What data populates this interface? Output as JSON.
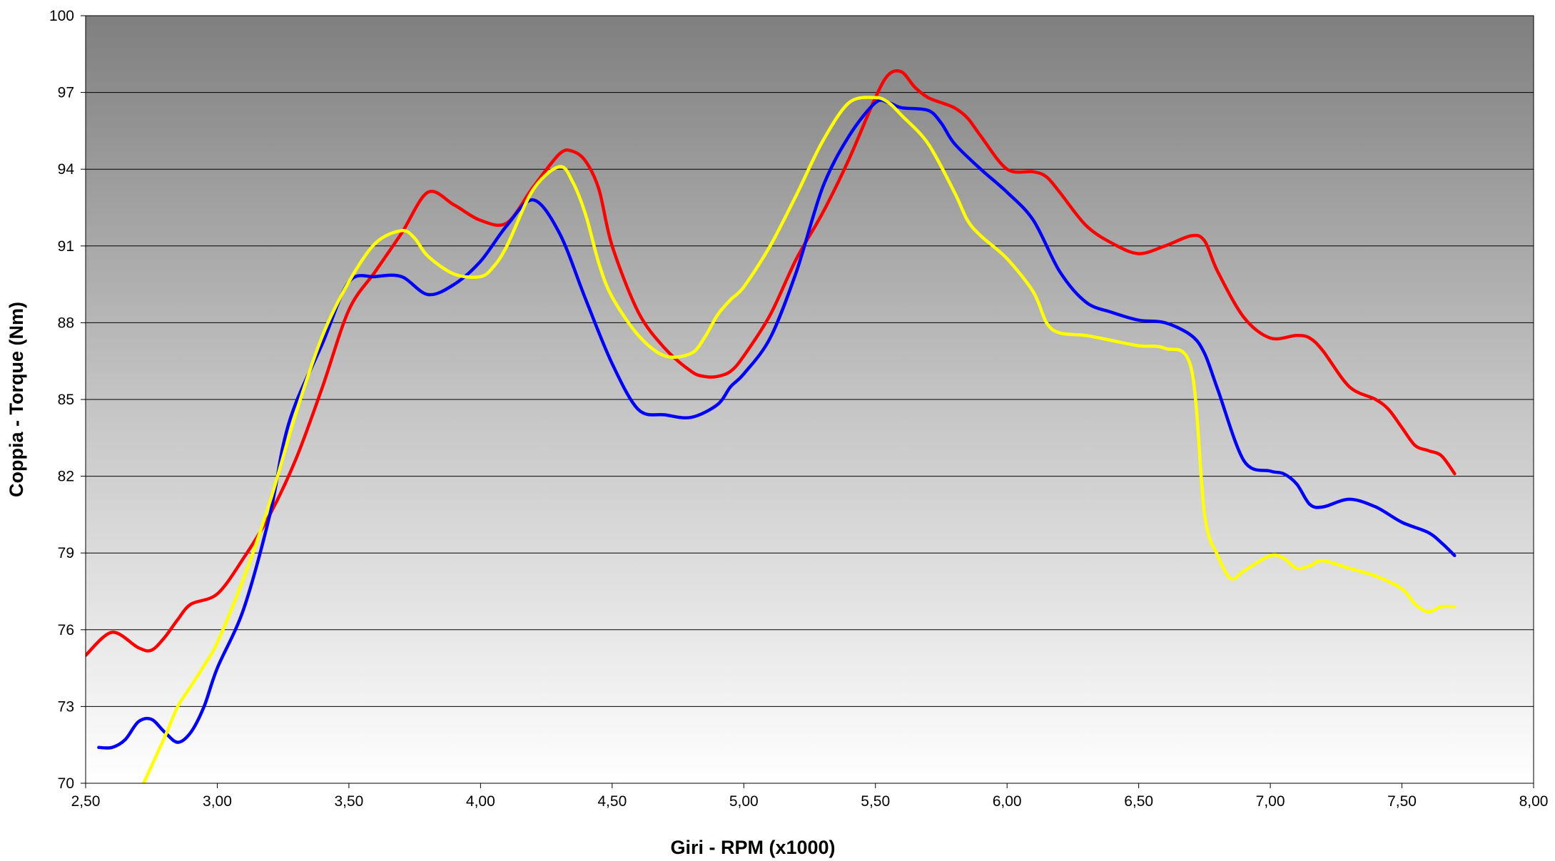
{
  "chart_data": {
    "type": "line",
    "xlabel": "Giri - RPM (x1000)",
    "ylabel": "Coppia - Torque (Nm)",
    "xlim": [
      2.5,
      8.0
    ],
    "ylim": [
      70,
      100
    ],
    "x_ticks": [
      "2,50",
      "3,00",
      "3,50",
      "4,00",
      "4,50",
      "5,00",
      "5,50",
      "6,00",
      "6,50",
      "7,00",
      "7,50",
      "8,00"
    ],
    "y_ticks": [
      "70",
      "73",
      "76",
      "79",
      "82",
      "85",
      "88",
      "91",
      "94",
      "97",
      "100"
    ],
    "grid": "horizontal",
    "background": "vertical gradient dark gray top to white bottom",
    "legend": "none",
    "series": [
      {
        "color": "#ff0000",
        "x": [
          2.5,
          2.6,
          2.7,
          2.75,
          2.8,
          2.85,
          2.9,
          3.0,
          3.1,
          3.2,
          3.3,
          3.4,
          3.5,
          3.6,
          3.7,
          3.8,
          3.9,
          4.0,
          4.1,
          4.2,
          4.3,
          4.35,
          4.4,
          4.45,
          4.5,
          4.6,
          4.7,
          4.8,
          4.85,
          4.9,
          4.95,
          5.0,
          5.1,
          5.2,
          5.3,
          5.4,
          5.5,
          5.55,
          5.6,
          5.65,
          5.7,
          5.75,
          5.8,
          5.85,
          5.9,
          6.0,
          6.1,
          6.15,
          6.2,
          6.3,
          6.4,
          6.5,
          6.6,
          6.7,
          6.75,
          6.8,
          6.9,
          7.0,
          7.1,
          7.15,
          7.2,
          7.3,
          7.4,
          7.45,
          7.5,
          7.55,
          7.6,
          7.65,
          7.7
        ],
        "y": [
          75.0,
          75.9,
          75.3,
          75.2,
          75.7,
          76.4,
          77.0,
          77.4,
          78.8,
          80.5,
          82.7,
          85.5,
          88.5,
          90.0,
          91.5,
          93.1,
          92.6,
          92.0,
          91.9,
          93.3,
          94.6,
          94.7,
          94.3,
          93.2,
          91.0,
          88.4,
          87.0,
          86.1,
          85.9,
          85.9,
          86.1,
          86.7,
          88.3,
          90.5,
          92.3,
          94.4,
          96.8,
          97.7,
          97.8,
          97.2,
          96.8,
          96.6,
          96.4,
          96.0,
          95.3,
          94.0,
          93.9,
          93.7,
          93.1,
          91.8,
          91.1,
          90.7,
          91.0,
          91.4,
          91.2,
          90.0,
          88.2,
          87.4,
          87.5,
          87.4,
          86.9,
          85.5,
          85.0,
          84.6,
          83.9,
          83.2,
          83.0,
          82.8,
          82.1
        ]
      },
      {
        "color": "#0000ff",
        "x": [
          2.55,
          2.6,
          2.65,
          2.7,
          2.75,
          2.8,
          2.85,
          2.9,
          2.95,
          3.0,
          3.1,
          3.2,
          3.25,
          3.3,
          3.4,
          3.5,
          3.6,
          3.7,
          3.8,
          3.9,
          4.0,
          4.1,
          4.2,
          4.3,
          4.4,
          4.5,
          4.6,
          4.7,
          4.8,
          4.9,
          4.95,
          5.0,
          5.1,
          5.2,
          5.3,
          5.4,
          5.5,
          5.55,
          5.6,
          5.7,
          5.75,
          5.8,
          5.9,
          6.0,
          6.1,
          6.2,
          6.3,
          6.4,
          6.5,
          6.6,
          6.7,
          6.75,
          6.8,
          6.9,
          7.0,
          7.05,
          7.1,
          7.15,
          7.2,
          7.3,
          7.4,
          7.5,
          7.6,
          7.65,
          7.7
        ],
        "y": [
          71.4,
          71.4,
          71.7,
          72.4,
          72.5,
          72.0,
          71.6,
          72.0,
          73.0,
          74.5,
          76.8,
          80.5,
          83.2,
          84.9,
          87.2,
          89.6,
          89.8,
          89.8,
          89.1,
          89.5,
          90.4,
          91.8,
          92.8,
          91.5,
          88.9,
          86.4,
          84.6,
          84.4,
          84.3,
          84.8,
          85.5,
          86.0,
          87.4,
          90.0,
          93.3,
          95.3,
          96.6,
          96.6,
          96.4,
          96.3,
          95.8,
          95.0,
          94.0,
          93.1,
          92.0,
          90.0,
          88.8,
          88.4,
          88.1,
          88.0,
          87.5,
          86.8,
          85.4,
          82.6,
          82.2,
          82.1,
          81.7,
          80.9,
          80.8,
          81.1,
          80.8,
          80.2,
          79.8,
          79.4,
          78.9
        ]
      },
      {
        "color": "#ffff00",
        "x": [
          2.72,
          2.8,
          2.85,
          2.9,
          2.95,
          3.0,
          3.1,
          3.2,
          3.3,
          3.4,
          3.5,
          3.6,
          3.7,
          3.75,
          3.8,
          3.9,
          4.0,
          4.05,
          4.1,
          4.2,
          4.3,
          4.35,
          4.4,
          4.45,
          4.5,
          4.6,
          4.7,
          4.8,
          4.85,
          4.9,
          4.95,
          5.0,
          5.1,
          5.2,
          5.3,
          5.4,
          5.5,
          5.55,
          5.6,
          5.7,
          5.8,
          5.85,
          5.9,
          6.0,
          6.1,
          6.15,
          6.2,
          6.3,
          6.4,
          6.5,
          6.6,
          6.7,
          6.75,
          6.8,
          6.85,
          6.9,
          7.0,
          7.05,
          7.1,
          7.15,
          7.2,
          7.3,
          7.4,
          7.5,
          7.55,
          7.6,
          7.65,
          7.7
        ],
        "y": [
          70.0,
          71.8,
          73.0,
          73.8,
          74.6,
          75.5,
          78.0,
          81.0,
          84.5,
          87.5,
          89.6,
          91.1,
          91.6,
          91.3,
          90.6,
          89.9,
          89.8,
          90.2,
          91.0,
          93.2,
          94.1,
          93.5,
          92.2,
          90.3,
          89.0,
          87.5,
          86.7,
          86.8,
          87.4,
          88.3,
          88.9,
          89.4,
          91.0,
          93.0,
          95.1,
          96.6,
          96.8,
          96.6,
          96.1,
          95.0,
          93.1,
          92.0,
          91.4,
          90.5,
          89.2,
          88.0,
          87.6,
          87.5,
          87.3,
          87.1,
          87.0,
          86.2,
          80.5,
          78.9,
          78.0,
          78.3,
          78.9,
          78.8,
          78.4,
          78.5,
          78.7,
          78.4,
          78.1,
          77.6,
          77.0,
          76.7,
          76.9,
          76.9
        ]
      }
    ]
  }
}
